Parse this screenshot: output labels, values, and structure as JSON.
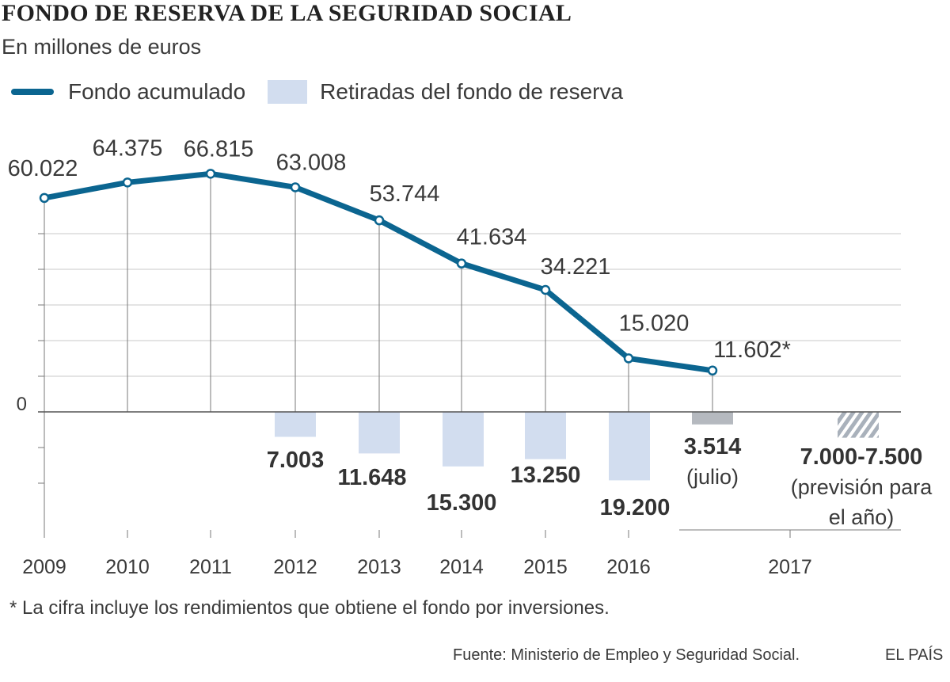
{
  "header": {
    "title": "FONDO DE RESERVA DE LA SEGURIDAD SOCIAL",
    "subtitle": "En millones de euros"
  },
  "legend": {
    "line_label": "Fondo acumulado",
    "bar_label": "Retiradas del fondo de reserva"
  },
  "colors": {
    "line": "#0b6590",
    "bar": "#d2ddef",
    "bar_partial": "#b5b9bf",
    "bar_forecast": "#a9b1bb",
    "grid": "#7a7a7a",
    "text": "#3a3a3a",
    "bold_text": "#333333"
  },
  "chart_data": {
    "type": "line",
    "categories": [
      "2009",
      "2010",
      "2011",
      "2012",
      "2013",
      "2014",
      "2015",
      "2016",
      "2017"
    ],
    "y_zero_label": "0",
    "ylim": [
      -21000,
      72000
    ],
    "series": [
      {
        "name": "Fondo acumulado",
        "type": "line",
        "x": [
          "2009",
          "2010",
          "2011",
          "2012",
          "2013",
          "2014",
          "2015",
          "2016",
          "2017"
        ],
        "values": [
          60022,
          64375,
          66815,
          63008,
          53744,
          41634,
          34221,
          15020,
          11602
        ],
        "labels": [
          "60.022",
          "64.375",
          "66.815",
          "63.008",
          "53.744",
          "41.634",
          "34.221",
          "15.020",
          "11.602*"
        ]
      },
      {
        "name": "Retiradas del fondo de reserva",
        "type": "bar",
        "x": [
          "2012",
          "2013",
          "2014",
          "2015",
          "2016",
          "2017",
          "2017"
        ],
        "values": [
          7003,
          11648,
          15300,
          13250,
          19200,
          3514,
          7250
        ],
        "labels": [
          "7.003",
          "11.648",
          "15.300",
          "13.250",
          "19.200",
          "3.514",
          "7.000-7.500"
        ],
        "sublabels": [
          "",
          "",
          "",
          "",
          "",
          "(julio)",
          "(previsión para|el año)"
        ],
        "styles": [
          "solid",
          "solid",
          "solid",
          "solid",
          "solid",
          "partial",
          "forecast"
        ]
      }
    ]
  },
  "footnote": "* La cifra incluye los rendimientos que obtiene el fondo por inversiones.",
  "source": "Fuente: Ministerio de Empleo y Seguridad Social.",
  "brand": "EL PAÍS"
}
